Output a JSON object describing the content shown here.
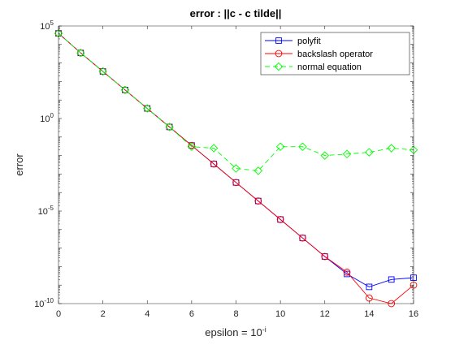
{
  "chart_data": {
    "type": "line",
    "title": "error : ||c - c tilde||",
    "xlabel": "epsilon = 10",
    "xlabel_sup": "-i",
    "ylabel": "error",
    "yscale": "log",
    "xlim": [
      0,
      16
    ],
    "ylim_exponents": [
      -10,
      5
    ],
    "x_ticks": [
      "0",
      "2",
      "4",
      "6",
      "8",
      "10",
      "12",
      "14",
      "16"
    ],
    "y_ticks": [
      {
        "base": "10",
        "exp": "5"
      },
      {
        "base": "10",
        "exp": "0"
      },
      {
        "base": "10",
        "exp": "-5"
      },
      {
        "base": "10",
        "exp": "-10"
      }
    ],
    "grid": false,
    "legend_position": "top-right",
    "x": [
      0,
      1,
      2,
      3,
      4,
      5,
      6,
      7,
      8,
      9,
      10,
      11,
      12,
      13,
      14,
      15,
      16
    ],
    "series": [
      {
        "name": "polyfit",
        "color": "#0000ff",
        "marker": "square",
        "linestyle": "solid",
        "values": [
          40000,
          3500,
          350,
          35,
          3.5,
          0.35,
          0.035,
          0.0035,
          0.00035,
          3.5e-05,
          3.5e-06,
          3.5e-07,
          3.5e-08,
          4e-09,
          8e-10,
          2e-09,
          2.5e-09
        ]
      },
      {
        "name": "backslash operator",
        "color": "#ff0000",
        "marker": "circle",
        "linestyle": "solid",
        "values": [
          40000,
          3500,
          350,
          35,
          3.5,
          0.35,
          0.035,
          0.0035,
          0.00035,
          3.5e-05,
          3.5e-06,
          3.5e-07,
          3.5e-08,
          5e-09,
          2e-10,
          1e-10,
          1e-09
        ]
      },
      {
        "name": "normal equation",
        "color": "#00ff00",
        "marker": "diamond",
        "linestyle": "dashed",
        "values": [
          40000,
          3500,
          350,
          35,
          3.5,
          0.35,
          0.03,
          0.025,
          0.002,
          0.0015,
          0.03,
          0.03,
          0.01,
          0.012,
          0.015,
          0.025,
          0.02
        ]
      }
    ]
  }
}
